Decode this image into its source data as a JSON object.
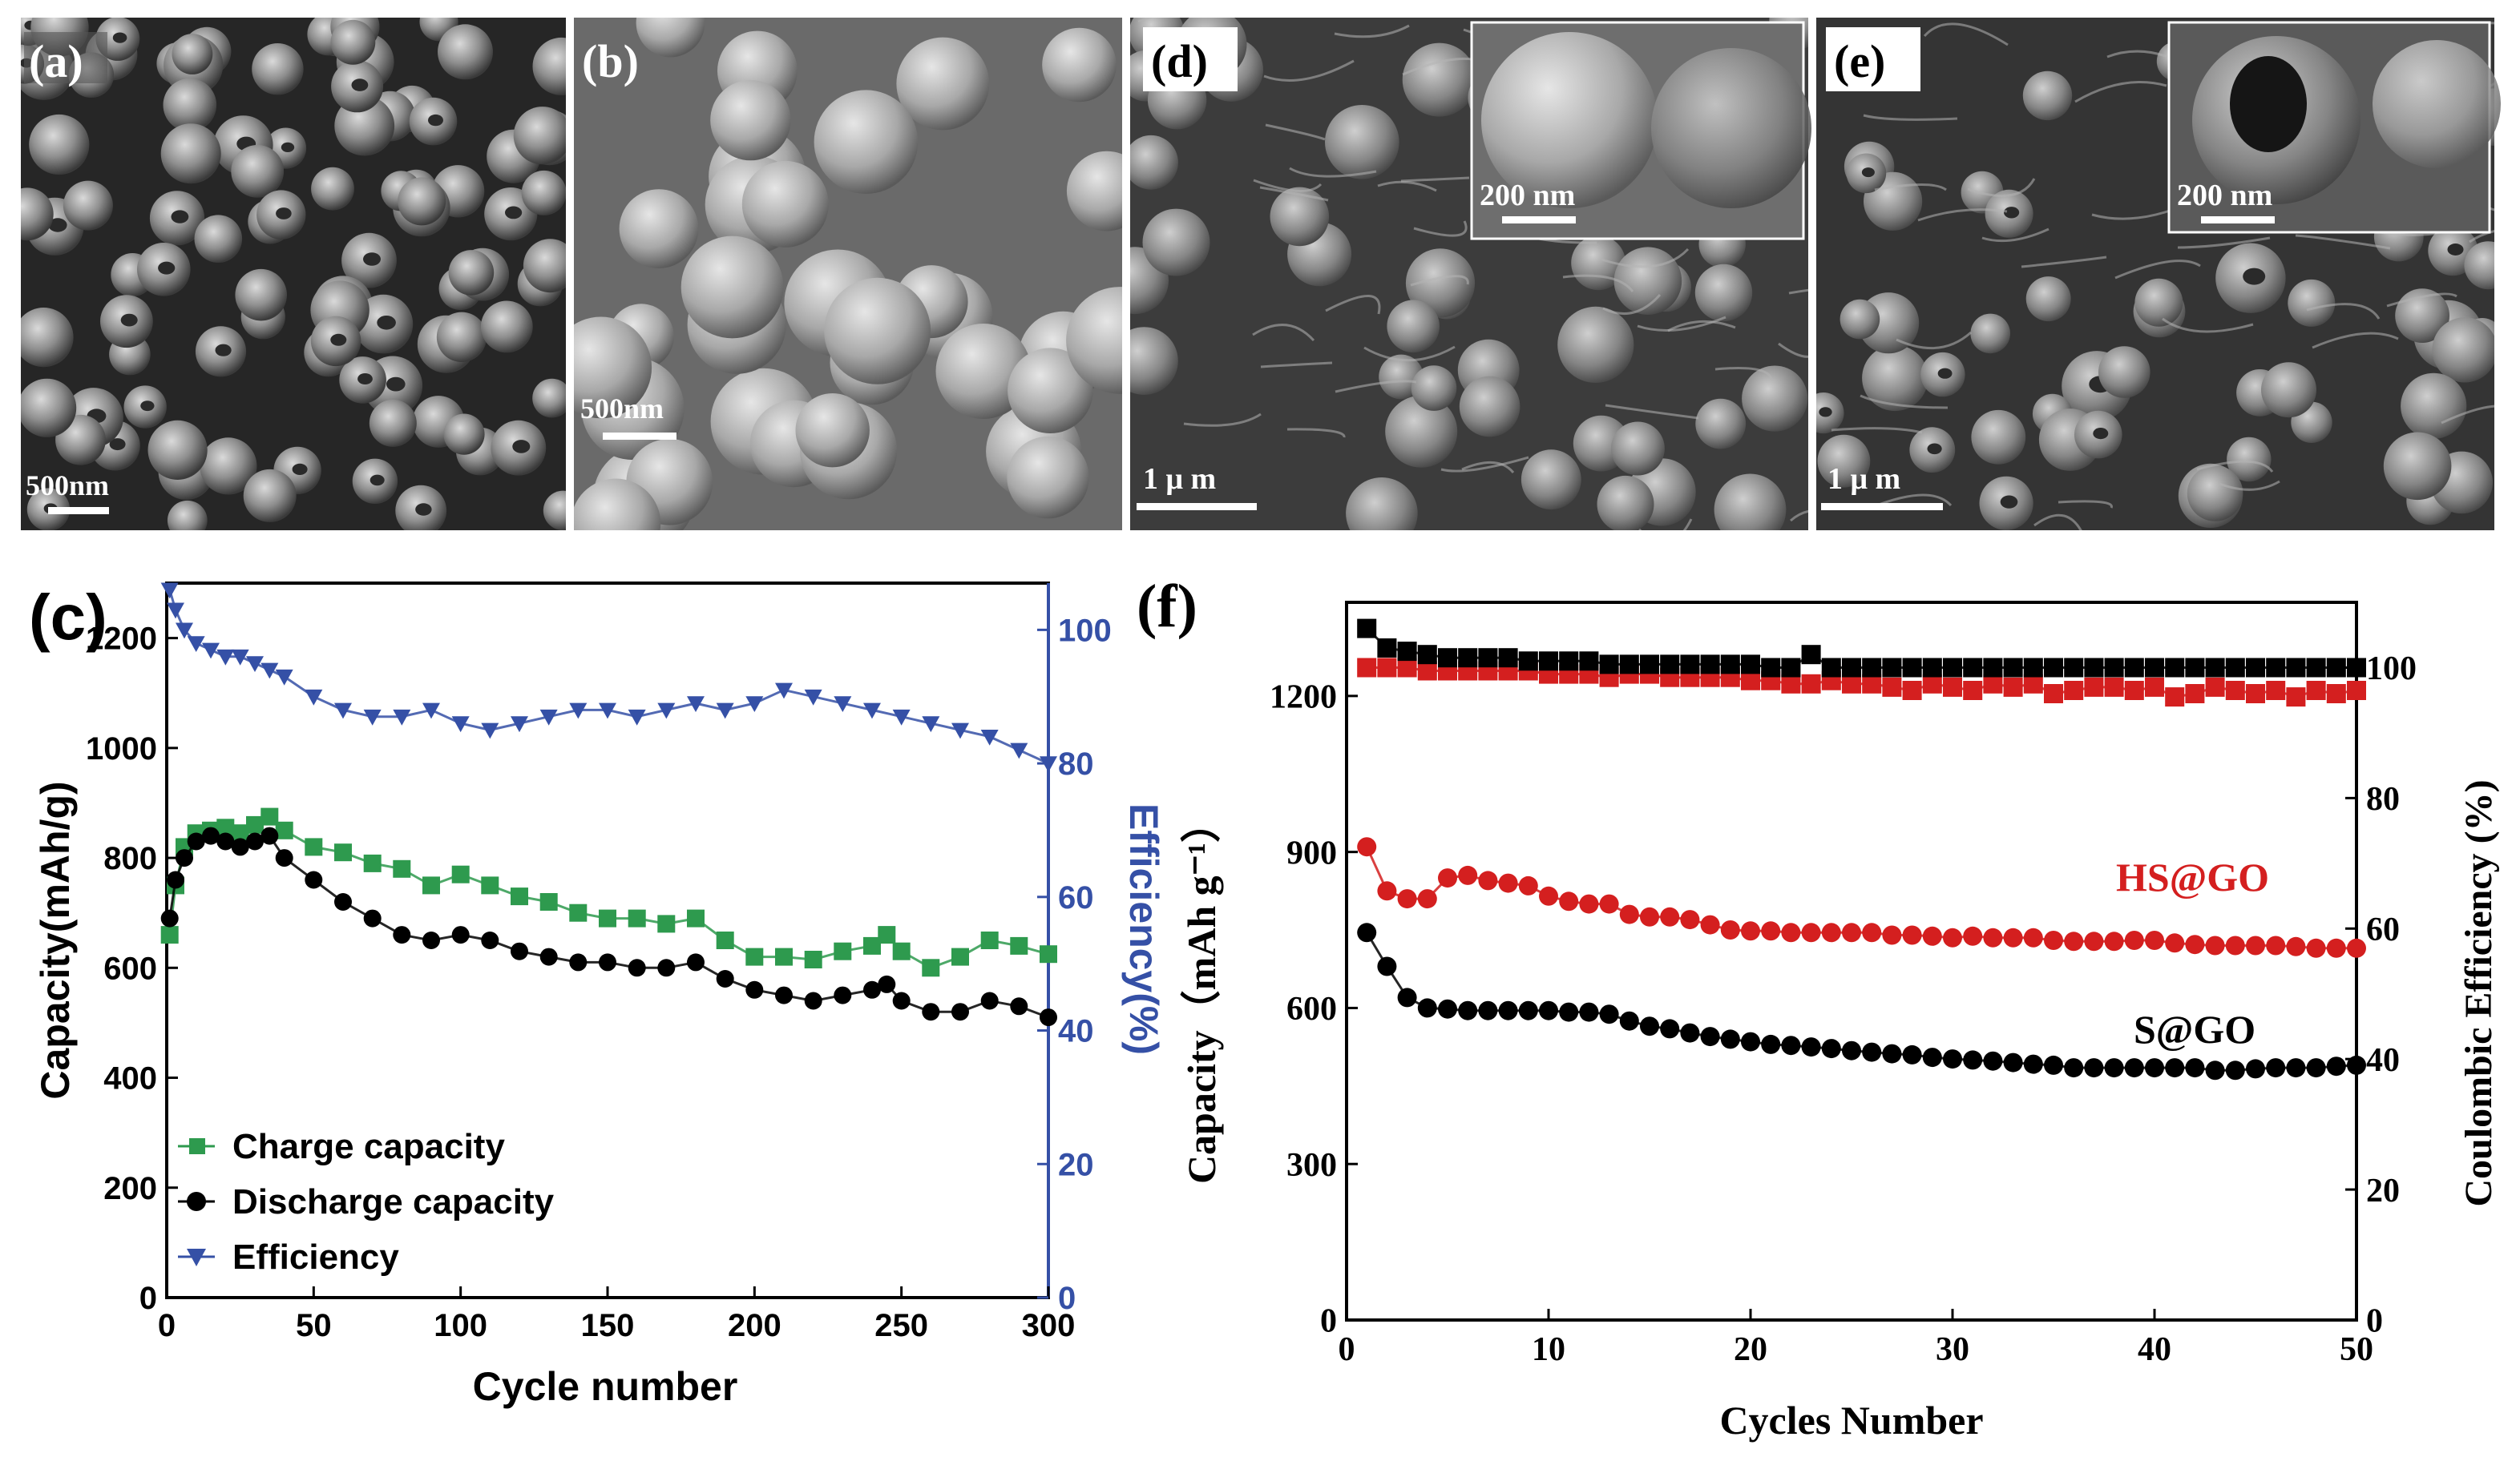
{
  "sem_panels": [
    {
      "label": "(a)",
      "scale_bar": "500nm",
      "inset": null,
      "style": "dense"
    },
    {
      "label": "(b)",
      "scale_bar": "500nm",
      "inset": null,
      "style": "smooth"
    },
    {
      "label": "(d)",
      "scale_bar": "1 μ m",
      "inset": {
        "scale_bar": "200 nm"
      },
      "style": "wrinkled"
    },
    {
      "label": "(e)",
      "scale_bar": "1 μ m",
      "inset": {
        "scale_bar": "200 nm"
      },
      "style": "wrinkled"
    }
  ],
  "colors": {
    "charge": "#2e9a4e",
    "discharge": "#000000",
    "efficiency": "#3550a6",
    "hs": "#d41f1f",
    "s": "#000000",
    "ce": "#000000"
  },
  "chart_data": [
    {
      "panel": "(c)",
      "type": "scatter",
      "xlabel": "Cycle number",
      "ylabel": "Capacity(mAh/g)",
      "y2label": "Efficiency(%)",
      "xlim": [
        0,
        300
      ],
      "ylim": [
        0,
        1300
      ],
      "y2lim": [
        0,
        107
      ],
      "x_ticks": [
        "0",
        "50",
        "100",
        "150",
        "200",
        "250",
        "300"
      ],
      "y_ticks": [
        "0",
        "200",
        "400",
        "600",
        "800",
        "1000",
        "1200"
      ],
      "y2_ticks": [
        "0",
        "20",
        "40",
        "60",
        "80",
        "100"
      ],
      "legend": [
        "Charge capacity",
        "Discharge capacity",
        "Efficiency"
      ],
      "series": [
        {
          "name": "Charge capacity",
          "color_key": "charge",
          "marker": "square",
          "axis": "left",
          "x": [
            1,
            3,
            6,
            10,
            15,
            20,
            25,
            30,
            35,
            40,
            50,
            60,
            70,
            80,
            90,
            100,
            110,
            120,
            130,
            140,
            150,
            160,
            170,
            180,
            190,
            200,
            210,
            220,
            230,
            240,
            245,
            250,
            260,
            270,
            280,
            290,
            300
          ],
          "values": [
            660,
            750,
            820,
            845,
            850,
            855,
            845,
            860,
            875,
            850,
            820,
            810,
            790,
            780,
            750,
            770,
            750,
            730,
            720,
            700,
            690,
            690,
            680,
            690,
            650,
            620,
            620,
            615,
            630,
            640,
            660,
            630,
            600,
            620,
            650,
            640,
            625
          ]
        },
        {
          "name": "Discharge capacity",
          "color_key": "discharge",
          "marker": "circle",
          "axis": "left",
          "x": [
            1,
            3,
            6,
            10,
            15,
            20,
            25,
            30,
            35,
            40,
            50,
            60,
            70,
            80,
            90,
            100,
            110,
            120,
            130,
            140,
            150,
            160,
            170,
            180,
            190,
            200,
            210,
            220,
            230,
            240,
            245,
            250,
            260,
            270,
            280,
            290,
            300
          ],
          "values": [
            690,
            760,
            800,
            830,
            840,
            830,
            820,
            830,
            840,
            800,
            760,
            720,
            690,
            660,
            650,
            660,
            650,
            630,
            620,
            610,
            610,
            600,
            600,
            610,
            580,
            560,
            550,
            540,
            550,
            560,
            570,
            540,
            520,
            520,
            540,
            530,
            510
          ]
        },
        {
          "name": "Efficiency",
          "color_key": "efficiency",
          "marker": "triangle-down",
          "axis": "right",
          "x": [
            1,
            3,
            6,
            10,
            15,
            20,
            25,
            30,
            35,
            40,
            50,
            60,
            70,
            80,
            90,
            100,
            110,
            120,
            130,
            140,
            150,
            160,
            170,
            180,
            190,
            200,
            210,
            220,
            230,
            240,
            250,
            260,
            270,
            280,
            290,
            300
          ],
          "values": [
            106,
            103,
            100,
            98,
            97,
            96,
            96,
            95,
            94,
            93,
            90,
            88,
            87,
            87,
            88,
            86,
            85,
            86,
            87,
            88,
            88,
            87,
            88,
            89,
            88,
            89,
            91,
            90,
            89,
            88,
            87,
            86,
            85,
            84,
            82,
            80
          ]
        }
      ]
    },
    {
      "panel": "(f)",
      "type": "scatter",
      "xlabel": "Cycles Number",
      "ylabel": "Capacity（mAh g⁻¹）",
      "y2label": "Coulombic Efficiency (%)",
      "xlim": [
        0,
        50
      ],
      "ylim": [
        0,
        1380
      ],
      "y2lim": [
        0,
        110
      ],
      "x_ticks": [
        "0",
        "10",
        "20",
        "30",
        "40",
        "50"
      ],
      "y_ticks": [
        "0",
        "300",
        "600",
        "900",
        "1200"
      ],
      "y2_ticks": [
        "0",
        "20",
        "40",
        "60",
        "80",
        "100"
      ],
      "annotations": [
        "HS@GO",
        "S@GO"
      ],
      "series": [
        {
          "name": "HS@GO",
          "color_key": "hs",
          "marker": "circle",
          "axis": "left",
          "x": [
            1,
            2,
            3,
            4,
            5,
            6,
            7,
            8,
            9,
            10,
            11,
            12,
            13,
            14,
            15,
            16,
            17,
            18,
            19,
            20,
            21,
            22,
            23,
            24,
            25,
            26,
            27,
            28,
            29,
            30,
            31,
            32,
            33,
            34,
            35,
            36,
            37,
            38,
            39,
            40,
            41,
            42,
            43,
            44,
            45,
            46,
            47,
            48,
            49,
            50
          ],
          "values": [
            910,
            825,
            810,
            810,
            850,
            855,
            845,
            840,
            835,
            815,
            805,
            800,
            800,
            780,
            775,
            775,
            770,
            760,
            750,
            748,
            748,
            745,
            745,
            745,
            745,
            745,
            740,
            740,
            738,
            735,
            738,
            735,
            735,
            735,
            730,
            728,
            728,
            728,
            730,
            730,
            725,
            722,
            720,
            720,
            720,
            720,
            718,
            715,
            715,
            715
          ]
        },
        {
          "name": "S@GO",
          "color_key": "s",
          "marker": "circle",
          "axis": "left",
          "x": [
            1,
            2,
            3,
            4,
            5,
            6,
            7,
            8,
            9,
            10,
            11,
            12,
            13,
            14,
            15,
            16,
            17,
            18,
            19,
            20,
            21,
            22,
            23,
            24,
            25,
            26,
            27,
            28,
            29,
            30,
            31,
            32,
            33,
            34,
            35,
            36,
            37,
            38,
            39,
            40,
            41,
            42,
            43,
            44,
            45,
            46,
            47,
            48,
            49,
            50
          ],
          "values": [
            745,
            680,
            620,
            600,
            598,
            595,
            595,
            595,
            595,
            595,
            592,
            592,
            588,
            575,
            565,
            560,
            552,
            545,
            540,
            535,
            530,
            528,
            525,
            522,
            518,
            515,
            512,
            510,
            505,
            502,
            500,
            498,
            495,
            492,
            490,
            485,
            485,
            485,
            485,
            485,
            485,
            485,
            480,
            480,
            483,
            485,
            485,
            485,
            488,
            490
          ]
        },
        {
          "name": "HS@GO CE",
          "color_key": "hs",
          "marker": "square",
          "axis": "right",
          "x": [
            1,
            2,
            3,
            4,
            5,
            6,
            7,
            8,
            9,
            10,
            11,
            12,
            13,
            14,
            15,
            16,
            17,
            18,
            19,
            20,
            21,
            22,
            23,
            24,
            25,
            26,
            27,
            28,
            29,
            30,
            31,
            32,
            33,
            34,
            35,
            36,
            37,
            38,
            39,
            40,
            41,
            42,
            43,
            44,
            45,
            46,
            47,
            48,
            49,
            50
          ],
          "values": [
            100,
            100,
            100,
            99.5,
            99.5,
            99.5,
            99.5,
            99.5,
            99.5,
            99,
            99,
            99,
            98.5,
            99,
            99,
            98.5,
            98.5,
            98.5,
            98.5,
            98,
            98,
            97.5,
            97.5,
            98,
            97.5,
            97.5,
            97,
            96.5,
            97.5,
            97,
            96.5,
            97.5,
            97,
            97.5,
            96,
            96.5,
            97,
            97,
            96.5,
            97,
            95.5,
            96,
            97,
            96.5,
            96,
            96.5,
            95.5,
            96.5,
            96,
            96.5
          ]
        },
        {
          "name": "S@GO CE",
          "color_key": "ce",
          "marker": "square",
          "axis": "right",
          "x": [
            1,
            2,
            3,
            4,
            5,
            6,
            7,
            8,
            9,
            10,
            11,
            12,
            13,
            14,
            15,
            16,
            17,
            18,
            19,
            20,
            21,
            22,
            23,
            24,
            25,
            26,
            27,
            28,
            29,
            30,
            31,
            32,
            33,
            34,
            35,
            36,
            37,
            38,
            39,
            40,
            41,
            42,
            43,
            44,
            45,
            46,
            47,
            48,
            49,
            50
          ],
          "values": [
            106,
            103,
            102.5,
            102,
            101.5,
            101.5,
            101.5,
            101.5,
            101,
            101,
            101,
            101,
            100.5,
            100.5,
            100.5,
            100.5,
            100.5,
            100.5,
            100.5,
            100.5,
            100,
            100,
            102,
            100,
            100,
            100,
            100,
            100,
            100,
            100,
            100,
            100,
            100,
            100,
            100,
            100,
            100,
            100,
            100,
            100,
            100,
            100,
            100,
            100,
            100,
            100,
            100,
            100,
            100,
            100
          ]
        }
      ]
    }
  ]
}
